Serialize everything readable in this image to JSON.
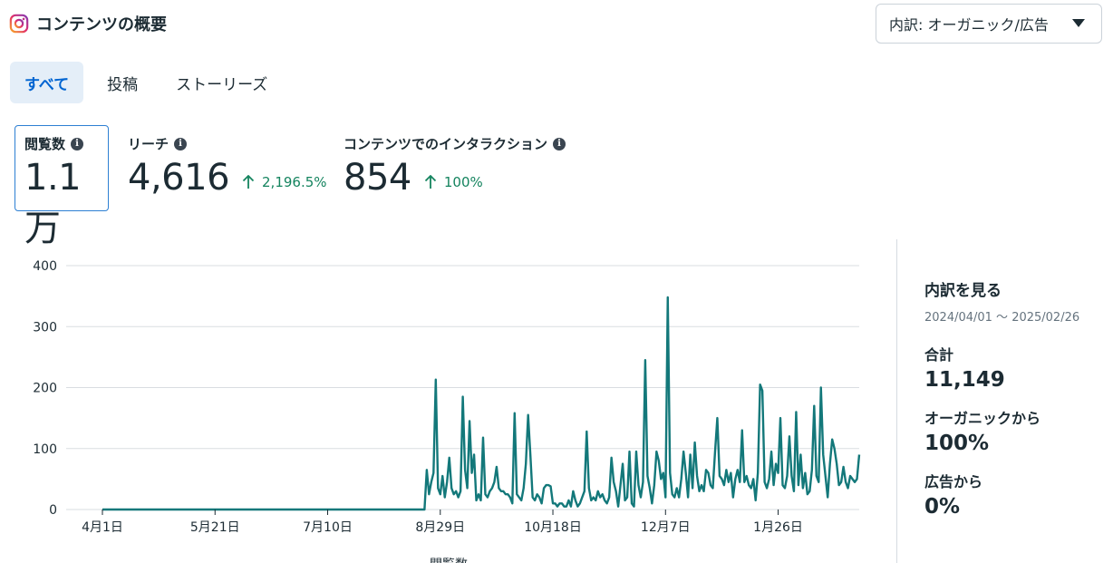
{
  "header": {
    "title": "コンテンツの概要",
    "icon": "instagram-icon"
  },
  "dropdown": {
    "label": "内訳: オーガニック/広告",
    "icon": "caret-down-icon"
  },
  "tabs": [
    {
      "label": "すべて",
      "active": true
    },
    {
      "label": "投稿",
      "active": false
    },
    {
      "label": "ストーリーズ",
      "active": false
    }
  ],
  "metrics": [
    {
      "label": "閲覧数",
      "value": "1.1万",
      "change": "",
      "selected": true
    },
    {
      "label": "リーチ",
      "value": "4,616",
      "change": "2,196.5%",
      "selected": false
    },
    {
      "label": "コンテンツでのインタラクション",
      "value": "854",
      "change": "100%",
      "selected": false
    }
  ],
  "colors": {
    "accent": "#0064d1",
    "series": "#13787a",
    "positive": "#15845f",
    "selected_border": "#2d7fd3"
  },
  "chart_data": {
    "type": "line",
    "title": "",
    "xlabel": "",
    "ylabel": "",
    "ylim": [
      0,
      400
    ],
    "yticks": [
      "0",
      "100",
      "200",
      "300",
      "400"
    ],
    "xtick_labels": [
      "4月1日",
      "5月21日",
      "7月10日",
      "8月29日",
      "10月18日",
      "12月7日",
      "1月26日"
    ],
    "x_start": "2024/04/01",
    "x_end": "2025/02/26",
    "grid": true,
    "series": [
      {
        "name": "閲覧数",
        "values": [
          0,
          0,
          0,
          0,
          0,
          0,
          0,
          0,
          0,
          0,
          0,
          0,
          0,
          0,
          0,
          0,
          0,
          0,
          0,
          0,
          0,
          0,
          0,
          0,
          0,
          0,
          0,
          0,
          0,
          0,
          0,
          0,
          0,
          0,
          0,
          0,
          0,
          0,
          0,
          0,
          0,
          0,
          0,
          0,
          0,
          0,
          0,
          0,
          0,
          0,
          0,
          0,
          0,
          0,
          0,
          0,
          0,
          0,
          0,
          0,
          0,
          0,
          0,
          0,
          0,
          0,
          0,
          0,
          0,
          0,
          0,
          0,
          0,
          0,
          0,
          0,
          0,
          0,
          0,
          0,
          0,
          0,
          0,
          0,
          0,
          0,
          0,
          0,
          0,
          0,
          0,
          0,
          0,
          0,
          0,
          0,
          0,
          0,
          0,
          0,
          0,
          0,
          0,
          0,
          0,
          0,
          0,
          0,
          0,
          0,
          0,
          0,
          0,
          0,
          0,
          0,
          0,
          0,
          0,
          0,
          0,
          0,
          0,
          0,
          0,
          0,
          0,
          0,
          0,
          0,
          0,
          0,
          0,
          0,
          0,
          0,
          0,
          0,
          0,
          0,
          0,
          0,
          0,
          0,
          65,
          25,
          45,
          60,
          213,
          35,
          25,
          55,
          20,
          45,
          85,
          35,
          25,
          30,
          20,
          30,
          185,
          65,
          35,
          145,
          60,
          90,
          15,
          25,
          15,
          118,
          25,
          20,
          30,
          35,
          45,
          70,
          35,
          30,
          30,
          25,
          25,
          20,
          10,
          158,
          25,
          20,
          15,
          35,
          75,
          155,
          90,
          20,
          15,
          25,
          20,
          10,
          35,
          40,
          40,
          38,
          10,
          10,
          5,
          10,
          10,
          5,
          5,
          15,
          5,
          30,
          15,
          5,
          10,
          20,
          30,
          128,
          35,
          15,
          20,
          15,
          30,
          20,
          25,
          15,
          10,
          20,
          85,
          45,
          30,
          5,
          40,
          75,
          15,
          20,
          95,
          10,
          5,
          95,
          40,
          20,
          45,
          245,
          55,
          35,
          10,
          40,
          95,
          80,
          50,
          60,
          20,
          348,
          60,
          25,
          20,
          35,
          20,
          50,
          95,
          60,
          20,
          90,
          35,
          110,
          55,
          30,
          40,
          30,
          65,
          60,
          40,
          35,
          95,
          150,
          55,
          50,
          40,
          65,
          45,
          60,
          20,
          50,
          65,
          45,
          130,
          45,
          55,
          40,
          35,
          50,
          15,
          60,
          205,
          195,
          45,
          35,
          50,
          95,
          40,
          75,
          60,
          150,
          40,
          35,
          55,
          120,
          55,
          30,
          160,
          40,
          90,
          35,
          60,
          25,
          30,
          65,
          170,
          55,
          45,
          200,
          90,
          55,
          20,
          75,
          115,
          100,
          75,
          40,
          45,
          70,
          45,
          35,
          55,
          50,
          45,
          50,
          90
        ]
      }
    ]
  },
  "legend_series_label": "閲覧数",
  "side_panel": {
    "title": "内訳を見る",
    "range": "2024/04/01 ～ 2025/02/26",
    "total_label": "合計",
    "total_value": "11,149",
    "organic_label": "オーガニックから",
    "organic_value": "100%",
    "ads_label": "広告から",
    "ads_value": "0%"
  }
}
